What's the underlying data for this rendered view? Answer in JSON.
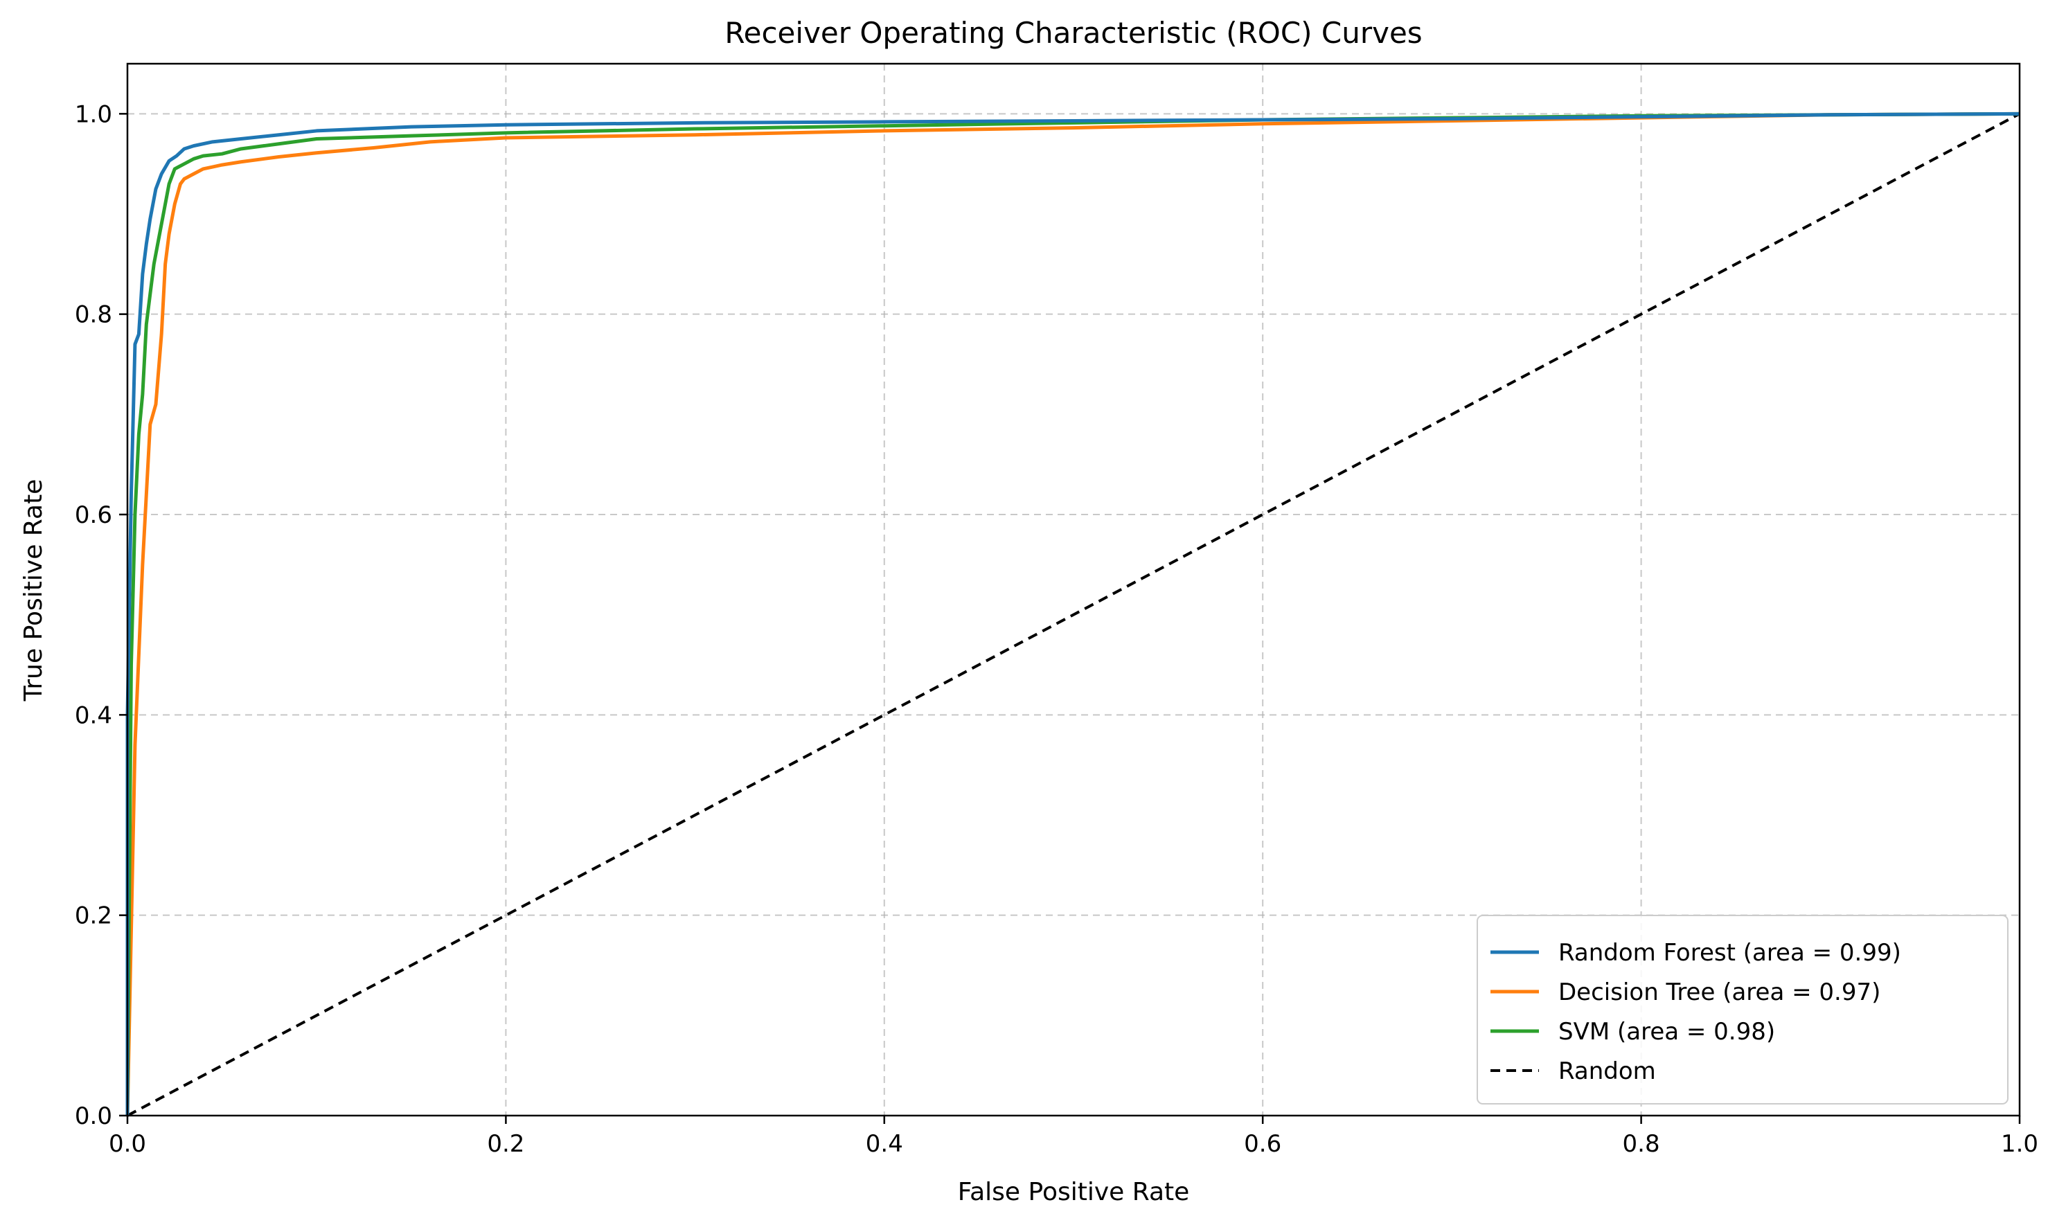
{
  "chart_data": {
    "type": "line",
    "title": "Receiver Operating Characteristic (ROC) Curves",
    "xlabel": "False Positive Rate",
    "ylabel": "True Positive Rate",
    "xlim": [
      0.0,
      1.0
    ],
    "ylim": [
      0.0,
      1.05
    ],
    "xticks": [
      0.0,
      0.2,
      0.4,
      0.6,
      0.8,
      1.0
    ],
    "xtick_labels": [
      "0.0",
      "0.2",
      "0.4",
      "0.6",
      "0.8",
      "1.0"
    ],
    "yticks": [
      0.0,
      0.2,
      0.4,
      0.6,
      0.8,
      1.0
    ],
    "ytick_labels": [
      "0.0",
      "0.2",
      "0.4",
      "0.6",
      "0.8",
      "1.0"
    ],
    "grid": true,
    "legend_position": "lower-right",
    "series": [
      {
        "name": "Random Forest (area = 0.99)",
        "color": "#1f77b4",
        "style": "solid",
        "x": [
          0.0,
          0.0,
          0.002,
          0.004,
          0.006,
          0.008,
          0.01,
          0.012,
          0.015,
          0.018,
          0.022,
          0.026,
          0.03,
          0.035,
          0.045,
          0.06,
          0.08,
          0.1,
          0.15,
          0.2,
          0.3,
          0.4,
          0.5,
          0.6,
          0.7,
          0.8,
          0.9,
          1.0
        ],
        "y": [
          0.0,
          0.4,
          0.62,
          0.77,
          0.78,
          0.84,
          0.87,
          0.895,
          0.925,
          0.94,
          0.953,
          0.958,
          0.965,
          0.968,
          0.972,
          0.975,
          0.979,
          0.983,
          0.987,
          0.989,
          0.991,
          0.992,
          0.993,
          0.994,
          0.995,
          0.997,
          0.999,
          1.0
        ]
      },
      {
        "name": "Decision Tree (area = 0.97)",
        "color": "#ff7f0e",
        "style": "solid",
        "x": [
          0.0,
          0.004,
          0.008,
          0.012,
          0.015,
          0.018,
          0.02,
          0.022,
          0.025,
          0.028,
          0.03,
          0.035,
          0.04,
          0.045,
          0.05,
          0.06,
          0.08,
          0.1,
          0.13,
          0.16,
          0.2,
          0.3,
          0.4,
          0.5,
          0.6,
          0.7,
          0.8,
          0.9,
          1.0
        ],
        "y": [
          0.0,
          0.37,
          0.55,
          0.69,
          0.71,
          0.78,
          0.85,
          0.88,
          0.91,
          0.93,
          0.935,
          0.94,
          0.945,
          0.947,
          0.949,
          0.952,
          0.957,
          0.961,
          0.966,
          0.972,
          0.976,
          0.979,
          0.983,
          0.986,
          0.99,
          0.993,
          0.996,
          0.999,
          1.0
        ]
      },
      {
        "name": "SVM (area = 0.98)",
        "color": "#2ca02c",
        "style": "solid",
        "x": [
          0.0,
          0.002,
          0.004,
          0.006,
          0.008,
          0.01,
          0.012,
          0.014,
          0.016,
          0.018,
          0.02,
          0.022,
          0.025,
          0.03,
          0.035,
          0.04,
          0.05,
          0.06,
          0.08,
          0.1,
          0.15,
          0.2,
          0.3,
          0.4,
          0.5,
          0.6,
          0.7,
          0.8,
          0.9,
          1.0
        ],
        "y": [
          0.0,
          0.45,
          0.6,
          0.68,
          0.72,
          0.79,
          0.82,
          0.85,
          0.87,
          0.89,
          0.91,
          0.93,
          0.945,
          0.95,
          0.955,
          0.958,
          0.96,
          0.965,
          0.97,
          0.975,
          0.978,
          0.981,
          0.985,
          0.988,
          0.991,
          0.994,
          0.996,
          0.998,
          0.999,
          1.0
        ]
      },
      {
        "name": "Random",
        "color": "#000000",
        "style": "dashed",
        "x": [
          0.0,
          1.0
        ],
        "y": [
          0.0,
          1.0
        ]
      }
    ]
  }
}
